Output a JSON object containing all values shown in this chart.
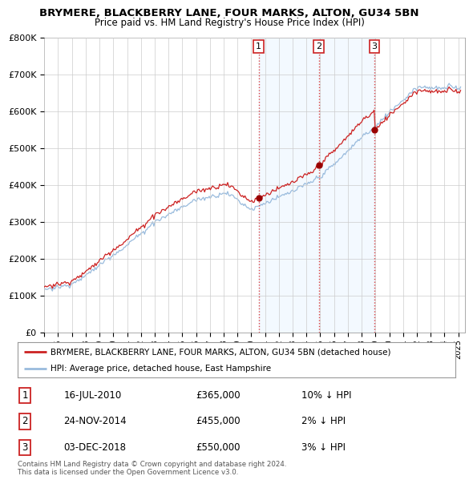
{
  "title": "BRYMERE, BLACKBERRY LANE, FOUR MARKS, ALTON, GU34 5BN",
  "subtitle": "Price paid vs. HM Land Registry's House Price Index (HPI)",
  "ylim": [
    0,
    800000
  ],
  "yticks": [
    0,
    100000,
    200000,
    300000,
    400000,
    500000,
    600000,
    700000,
    800000
  ],
  "ytick_labels": [
    "£0",
    "£100K",
    "£200K",
    "£300K",
    "£400K",
    "£500K",
    "£600K",
    "£700K",
    "£800K"
  ],
  "sale_dates": [
    2010.54,
    2014.9,
    2018.92
  ],
  "sale_prices": [
    365000,
    455000,
    550000
  ],
  "sale_labels": [
    "1",
    "2",
    "3"
  ],
  "vline_color": "#dd4444",
  "vline_style": ":",
  "dot_color": "#990000",
  "line_color_red": "#cc2222",
  "line_color_blue": "#99bbdd",
  "shade_color": "#ddeeff",
  "legend_red_label": "BRYMERE, BLACKBERRY LANE, FOUR MARKS, ALTON, GU34 5BN (detached house)",
  "legend_blue_label": "HPI: Average price, detached house, East Hampshire",
  "table_entries": [
    [
      "1",
      "16-JUL-2010",
      "£365,000",
      "10% ↓ HPI"
    ],
    [
      "2",
      "24-NOV-2014",
      "£455,000",
      "2% ↓ HPI"
    ],
    [
      "3",
      "03-DEC-2018",
      "£550,000",
      "3% ↓ HPI"
    ]
  ],
  "footer": "Contains HM Land Registry data © Crown copyright and database right 2024.\nThis data is licensed under the Open Government Licence v3.0.",
  "bg_color": "#ffffff",
  "plot_bg": "#ffffff",
  "shade_alpha": 0.35
}
